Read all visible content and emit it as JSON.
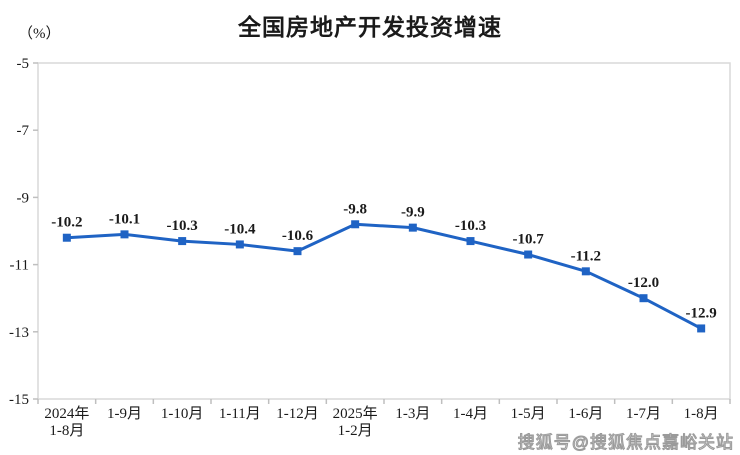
{
  "header": {
    "title": "全国房地产开发投资增速",
    "unit_label": "（%）"
  },
  "watermark": "搜狐号@搜狐焦点嘉峪关站",
  "colors": {
    "line": "#1f63c4",
    "marker": "#1f63c4",
    "plot_border": "#d9d9d9",
    "tick": "#bfbfbf",
    "text": "#1a1a1a",
    "title": "#1a1a1a",
    "watermark": "#9a9a9a",
    "background": "#ffffff"
  },
  "chart_data": {
    "type": "line",
    "title": "全国房地产开发投资增速",
    "ylabel": "（%）",
    "categories": [
      "2024年\n1-8月",
      "1-9月",
      "1-10月",
      "1-11月",
      "1-12月",
      "2025年\n1-2月",
      "1-3月",
      "1-4月",
      "1-5月",
      "1-6月",
      "1-7月",
      "1-8月"
    ],
    "values": [
      -10.2,
      -10.1,
      -10.3,
      -10.4,
      -10.6,
      -9.8,
      -9.9,
      -10.3,
      -10.7,
      -11.2,
      -12.0,
      -12.9
    ],
    "data_labels": [
      "-10.2",
      "-10.1",
      "-10.3",
      "-10.4",
      "-10.6",
      "-9.8",
      "-9.9",
      "-10.3",
      "-10.7",
      "-11.2",
      "-12.0",
      "-12.9"
    ],
    "yticks": [
      -5,
      -7,
      -9,
      -11,
      -13,
      -15
    ],
    "ylim": [
      -15,
      -5
    ],
    "grid": false,
    "legend": "none",
    "marker": "square",
    "line_style": "solid"
  }
}
